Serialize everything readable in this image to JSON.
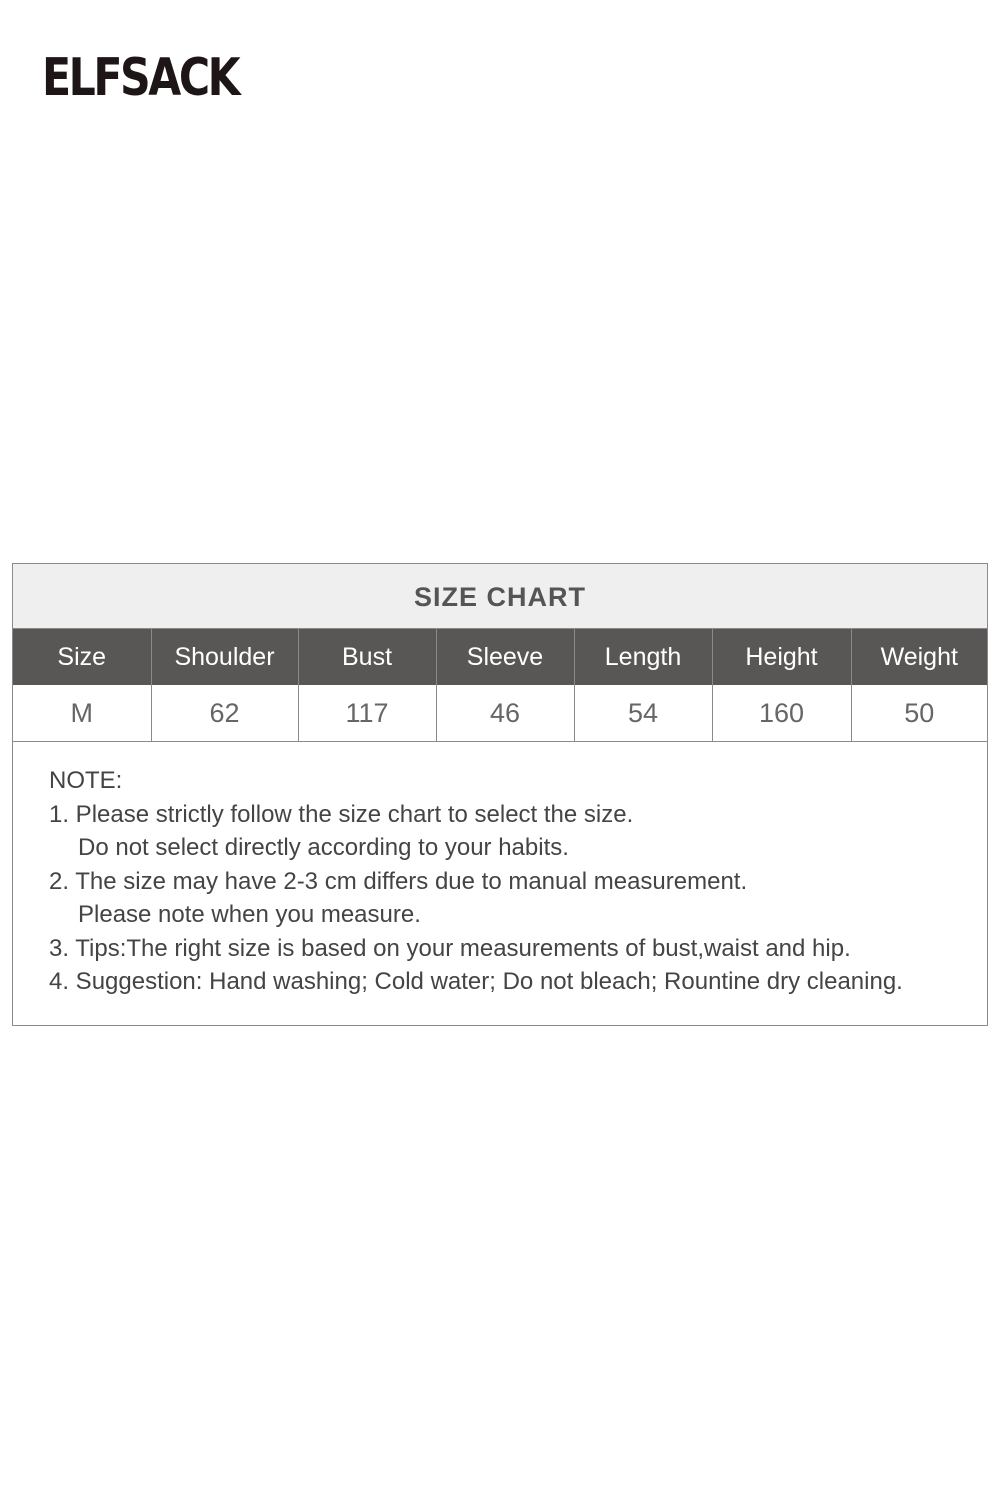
{
  "brand": {
    "logo_text": "ELFSACK"
  },
  "size_chart": {
    "title": "SIZE CHART",
    "headers": [
      "Size",
      "Shoulder",
      "Bust",
      "Sleeve",
      "Length",
      "Height",
      "Weight"
    ],
    "rows": [
      [
        "M",
        "62",
        "117",
        "46",
        "54",
        "160",
        "50"
      ]
    ]
  },
  "notes": {
    "heading": "NOTE:",
    "lines": [
      "1. Please strictly follow the size chart to select the size.",
      "Do not select directly according to your habits.",
      "2. The size may have 2-3 cm differs due to manual measurement.",
      "Please note when you measure.",
      "3. Tips:The right size is based on your measurements of bust,waist and hip.",
      "4. Suggestion: Hand washing; Cold water; Do not bleach; Rountine dry cleaning."
    ]
  }
}
